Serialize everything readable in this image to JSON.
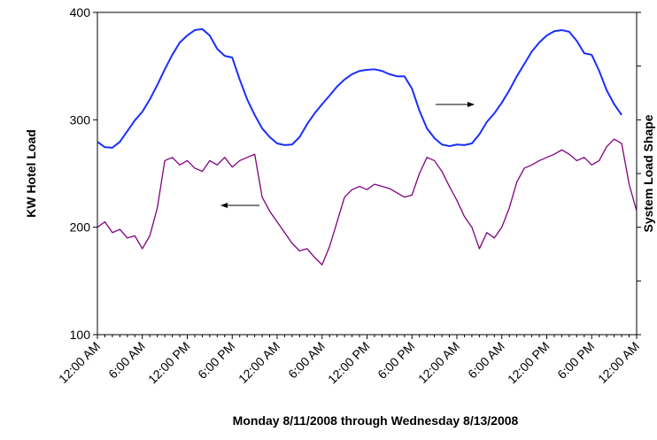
{
  "chart_data": {
    "type": "line",
    "xlabel": "Monday 8/11/2008 through Wednesday 8/13/2008",
    "ylabel": "KW Hotel Load",
    "y2label": "System Load Shape",
    "xlim": [
      0,
      72
    ],
    "xticks": [
      {
        "value": 0,
        "label": "12:00 AM"
      },
      {
        "value": 6,
        "label": "6:00 AM"
      },
      {
        "value": 12,
        "label": "12:00 PM"
      },
      {
        "value": 18,
        "label": "6:00 PM"
      },
      {
        "value": 24,
        "label": "12:00 AM"
      },
      {
        "value": 30,
        "label": "6:00 AM"
      },
      {
        "value": 36,
        "label": "12:00 PM"
      },
      {
        "value": 42,
        "label": "6:00 PM"
      },
      {
        "value": 48,
        "label": "12:00 AM"
      },
      {
        "value": 54,
        "label": "6:00 AM"
      },
      {
        "value": 60,
        "label": "12:00 PM"
      },
      {
        "value": 66,
        "label": "6:00 PM"
      },
      {
        "value": 72,
        "label": "12:00 AM"
      }
    ],
    "ylim": [
      100,
      400
    ],
    "yticks": [
      100,
      200,
      300,
      400
    ],
    "y2lim": [
      0,
      6
    ],
    "y2ticks": [
      0,
      1,
      2,
      3,
      4,
      5,
      6
    ],
    "x": [
      0,
      1,
      2,
      3,
      4,
      5,
      6,
      7,
      8,
      9,
      10,
      11,
      12,
      13,
      14,
      15,
      16,
      17,
      18,
      19,
      20,
      21,
      22,
      23,
      24,
      25,
      26,
      27,
      28,
      29,
      30,
      31,
      32,
      33,
      34,
      35,
      36,
      37,
      38,
      39,
      40,
      41,
      42,
      43,
      44,
      45,
      46,
      47,
      48,
      49,
      50,
      51,
      52,
      53,
      54,
      55,
      56,
      57,
      58,
      59,
      60,
      61,
      62,
      63,
      64,
      65,
      66,
      67,
      68,
      69,
      70,
      71,
      72
    ],
    "series": [
      {
        "name": "KW Hotel Load",
        "color": "#800080",
        "axis": "y",
        "values": [
          200,
          205,
          195,
          198,
          190,
          192,
          180,
          192,
          218,
          262,
          265,
          258,
          262,
          255,
          252,
          262,
          258,
          265,
          256,
          262,
          265,
          268,
          228,
          215,
          205,
          195,
          185,
          178,
          180,
          172,
          165,
          182,
          205,
          228,
          235,
          238,
          235,
          240,
          238,
          236,
          232,
          228,
          230,
          250,
          265,
          262,
          252,
          238,
          225,
          210,
          200,
          180,
          195,
          190,
          200,
          218,
          242,
          255,
          258,
          262,
          265,
          268,
          272,
          268,
          262,
          265,
          258,
          262,
          275,
          282,
          278,
          240,
          215
        ]
      },
      {
        "name": "System Load Shape",
        "color": "#1a2eff",
        "axis": "y2",
        "values": [
          3.59,
          3.49,
          3.48,
          3.59,
          3.79,
          3.99,
          4.15,
          4.38,
          4.65,
          4.94,
          5.21,
          5.44,
          5.57,
          5.67,
          5.69,
          5.57,
          5.32,
          5.19,
          5.16,
          4.75,
          4.38,
          4.09,
          3.84,
          3.68,
          3.56,
          3.53,
          3.54,
          3.68,
          3.92,
          4.12,
          4.29,
          4.45,
          4.62,
          4.75,
          4.85,
          4.91,
          4.93,
          4.94,
          4.91,
          4.85,
          4.81,
          4.81,
          4.58,
          4.17,
          3.84,
          3.66,
          3.54,
          3.51,
          3.54,
          3.53,
          3.56,
          3.73,
          3.96,
          4.12,
          4.32,
          4.55,
          4.81,
          5.04,
          5.27,
          5.44,
          5.57,
          5.65,
          5.67,
          5.64,
          5.47,
          5.24,
          5.21,
          4.91,
          4.55,
          4.29,
          4.09,
          null,
          null
        ]
      }
    ]
  }
}
